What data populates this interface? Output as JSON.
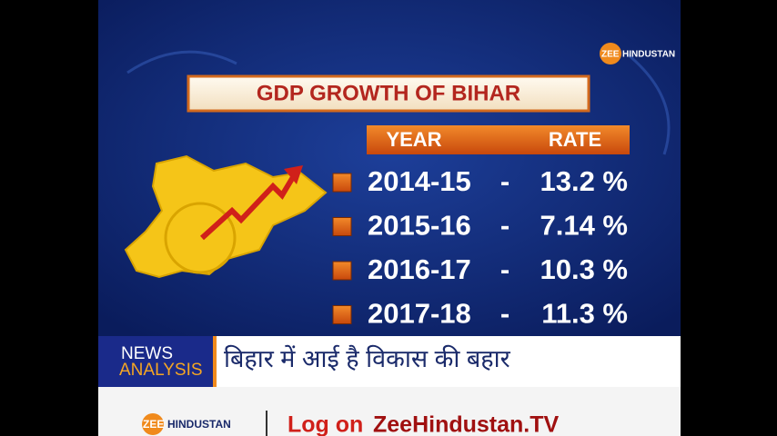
{
  "logo": {
    "zee": "ZEE",
    "brand": "HINDUSTAN"
  },
  "title": "GDP GROWTH OF BIHAR",
  "table": {
    "header": [
      "YEAR",
      "RATE"
    ],
    "rows": [
      [
        "2014-15",
        "-",
        "13.2 %"
      ],
      [
        "2015-16",
        "-",
        "7.14 %"
      ],
      [
        "2016-17",
        "-",
        "10.3 %"
      ],
      [
        "2017-18",
        "-",
        "11.3 %"
      ]
    ]
  },
  "ticker": {
    "tag_top": "NEWS",
    "tag_bottom": "ANALYSIS",
    "headline": "बिहार में आई है विकास की बहार"
  },
  "footer": {
    "logo_zee": "ZEE",
    "logo_brand": "HINDUSTAN",
    "log_on": "Log on",
    "site": "ZeeHindustan.TV"
  }
}
